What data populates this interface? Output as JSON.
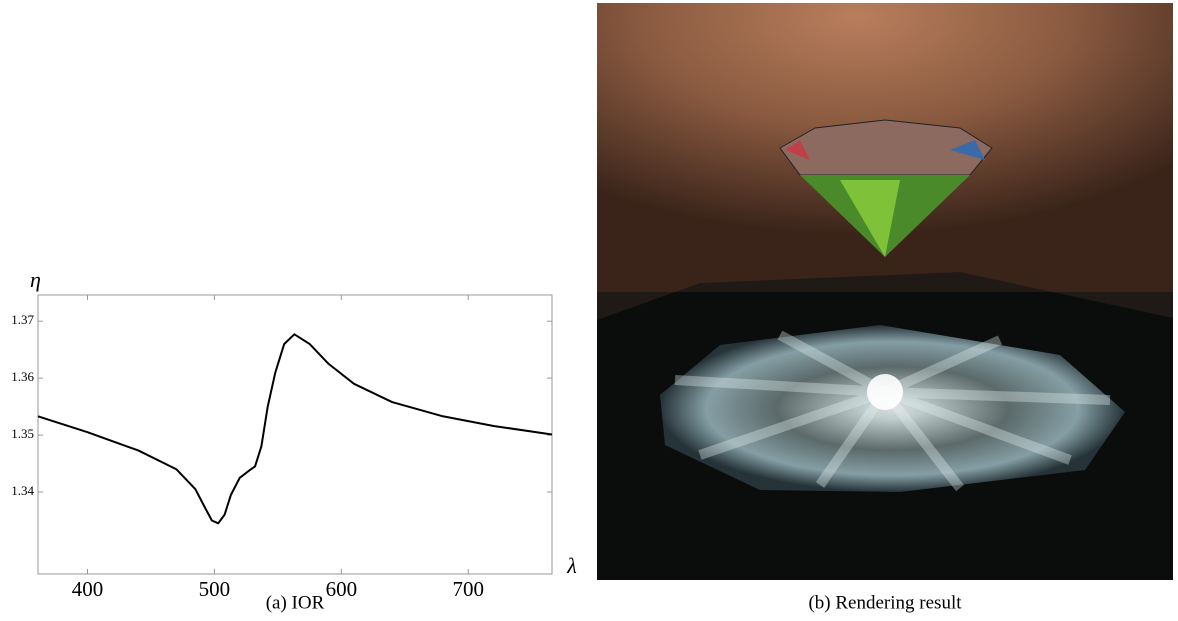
{
  "chart_data": {
    "type": "line",
    "y_label": "η",
    "x_label": "λ",
    "caption": "(a) IOR",
    "x": [
      361,
      400,
      440,
      470,
      485,
      492,
      498,
      503,
      508,
      513,
      520,
      527,
      532,
      537,
      542,
      548,
      555,
      563,
      575,
      590,
      610,
      640,
      680,
      720,
      766
    ],
    "series": [
      {
        "color": "#000000",
        "values": [
          1.3533,
          1.3505,
          1.3473,
          1.344,
          1.3405,
          1.3375,
          1.335,
          1.3345,
          1.336,
          1.3395,
          1.3425,
          1.3437,
          1.3445,
          1.348,
          1.355,
          1.361,
          1.366,
          1.3677,
          1.366,
          1.3625,
          1.359,
          1.3558,
          1.3533,
          1.3516,
          1.3501
        ]
      }
    ],
    "xlim": [
      361,
      766
    ],
    "ylim": [
      1.3256,
      1.3746
    ],
    "xticks": [
      400,
      500,
      600,
      700
    ],
    "yticks": [
      1.34,
      1.35,
      1.36,
      1.37
    ],
    "grid": false
  },
  "image": {
    "caption": "(b) Rendering result"
  }
}
